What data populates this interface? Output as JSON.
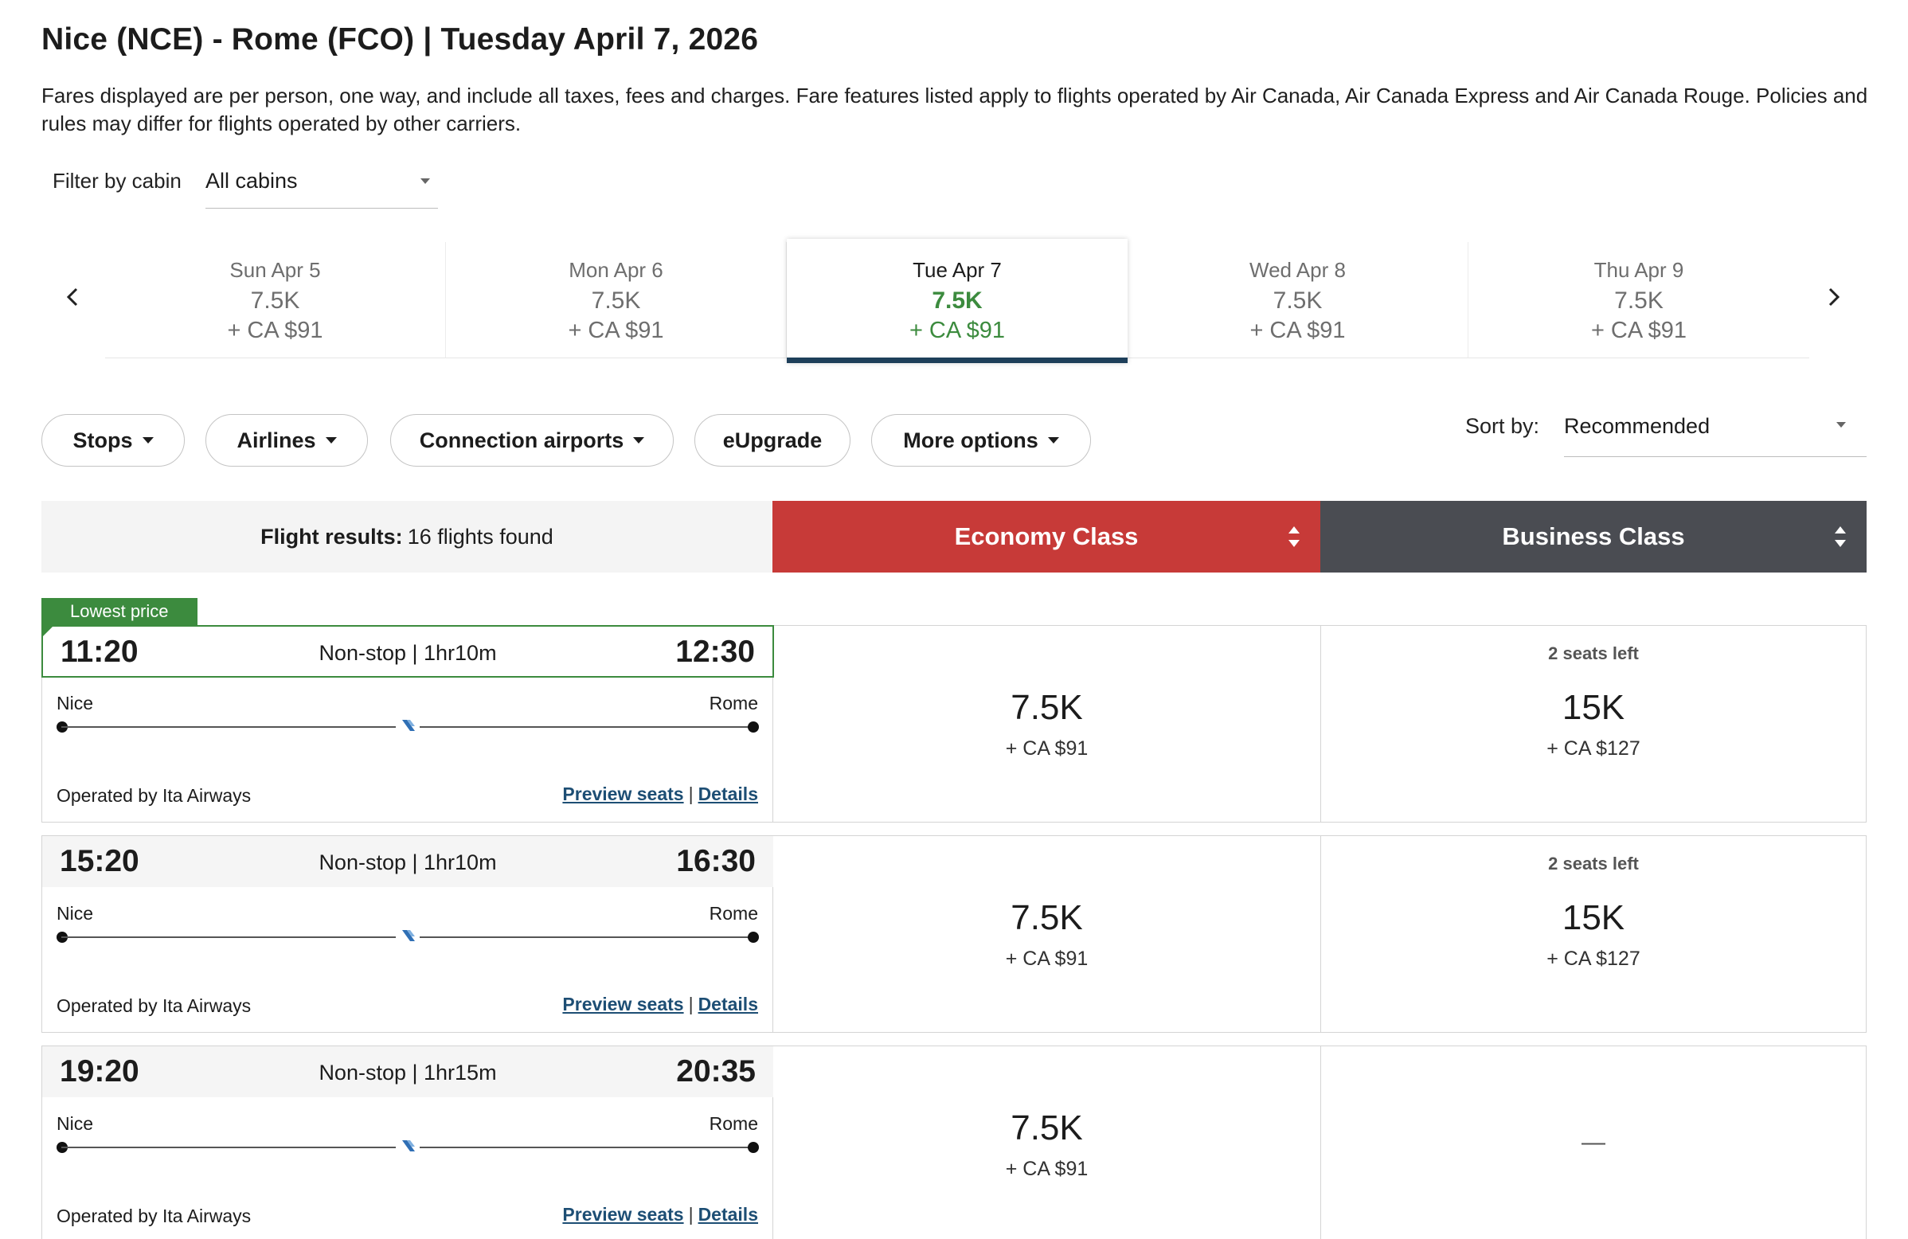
{
  "header": {
    "title": "Nice (NCE) - Rome (FCO)  |  Tuesday April 7, 2026",
    "disclaimer": "Fares displayed are per person, one way, and include all taxes, fees and charges. Fare features listed apply to flights operated by Air Canada, Air Canada Express and Air Canada Rouge. Policies and rules may differ for flights operated by other carriers."
  },
  "cabin_filter": {
    "label": "Filter by cabin",
    "value": "All cabins"
  },
  "date_strip": {
    "prev_icon": "chevron-left-icon",
    "next_icon": "chevron-right-icon",
    "dates": [
      {
        "label": "Sun Apr 5",
        "points": "7.5K",
        "cash": "+ CA $91",
        "selected": false
      },
      {
        "label": "Mon Apr 6",
        "points": "7.5K",
        "cash": "+ CA $91",
        "selected": false
      },
      {
        "label": "Tue Apr 7",
        "points": "7.5K",
        "cash": "+ CA $91",
        "selected": true
      },
      {
        "label": "Wed Apr 8",
        "points": "7.5K",
        "cash": "+ CA $91",
        "selected": false
      },
      {
        "label": "Thu Apr 9",
        "points": "7.5K",
        "cash": "+ CA $91",
        "selected": false
      }
    ],
    "selected_color": "#3c8b3e",
    "indicator_color": "#1e3f5a"
  },
  "filters": {
    "stops": "Stops",
    "airlines": "Airlines",
    "connection_airports": "Connection airports",
    "eupgrade": "eUpgrade",
    "more_options": "More options"
  },
  "sort": {
    "label": "Sort by:",
    "value": "Recommended"
  },
  "results": {
    "count_label": "Flight results:",
    "count_value": "16 flights found",
    "economy_label": "Economy Class",
    "business_label": "Business Class",
    "economy_color": "#c73a38",
    "business_color": "#4a4c52",
    "lowest_price_tag": "Lowest price"
  },
  "flights": [
    {
      "departure": "11:20",
      "arrival": "12:30",
      "summary": "Non-stop | 1hr10m",
      "origin": "Nice",
      "destination": "Rome",
      "operator": "Operated by Ita Airways",
      "preview_seats": "Preview seats",
      "details": "Details",
      "separator": "|",
      "economy": {
        "points": "7.5K",
        "cash": "+ CA $91"
      },
      "business": {
        "seats_left": "2 seats left",
        "points": "15K",
        "cash": "+ CA $127"
      }
    },
    {
      "departure": "15:20",
      "arrival": "16:30",
      "summary": "Non-stop | 1hr10m",
      "origin": "Nice",
      "destination": "Rome",
      "operator": "Operated by Ita Airways",
      "preview_seats": "Preview seats",
      "details": "Details",
      "separator": "|",
      "economy": {
        "points": "7.5K",
        "cash": "+ CA $91"
      },
      "business": {
        "seats_left": "2 seats left",
        "points": "15K",
        "cash": "+ CA $127"
      }
    },
    {
      "departure": "19:20",
      "arrival": "20:35",
      "summary": "Non-stop | 1hr15m",
      "origin": "Nice",
      "destination": "Rome",
      "operator": "Operated by Ita Airways",
      "preview_seats": "Preview seats",
      "details": "Details",
      "separator": "|",
      "economy": {
        "points": "7.5K",
        "cash": "+ CA $91"
      },
      "business": {
        "unavailable": "—"
      }
    }
  ]
}
